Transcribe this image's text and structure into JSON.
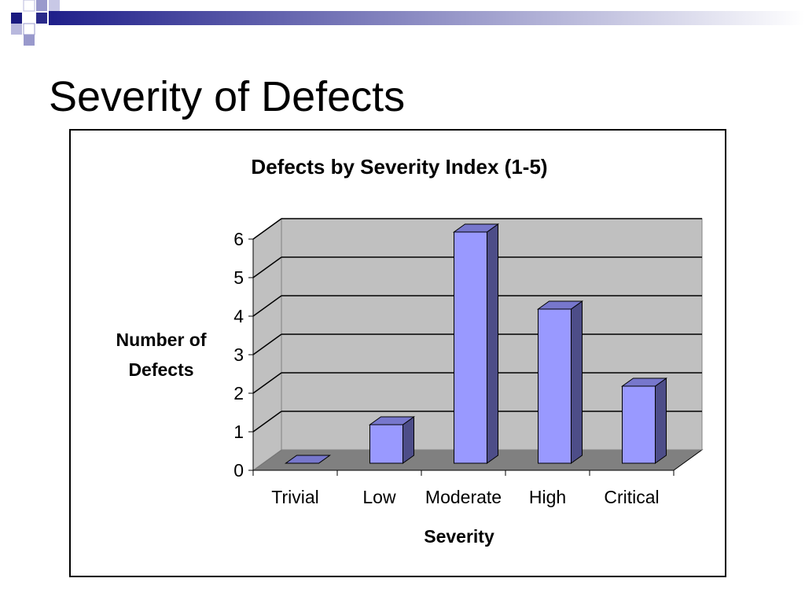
{
  "slide": {
    "title": "Severity of Defects"
  },
  "chart_data": {
    "type": "bar",
    "title": "Defects by Severity Index (1-5)",
    "xlabel": "Severity",
    "ylabel_lines": [
      "Number of",
      "Defects"
    ],
    "categories": [
      "Trivial",
      "Low",
      "Moderate",
      "High",
      "Critical"
    ],
    "values": [
      0,
      1,
      6,
      4,
      2
    ],
    "ylim": [
      0,
      6
    ],
    "yticks": [
      "0",
      "1",
      "2",
      "3",
      "4",
      "5",
      "6"
    ],
    "grid": true,
    "legend": "none",
    "colors": {
      "bar_front": "#9999FF",
      "bar_side": "#4D4D88",
      "bar_top": "#7777CC",
      "wall": "#C0C0C0",
      "floor": "#808080"
    }
  }
}
